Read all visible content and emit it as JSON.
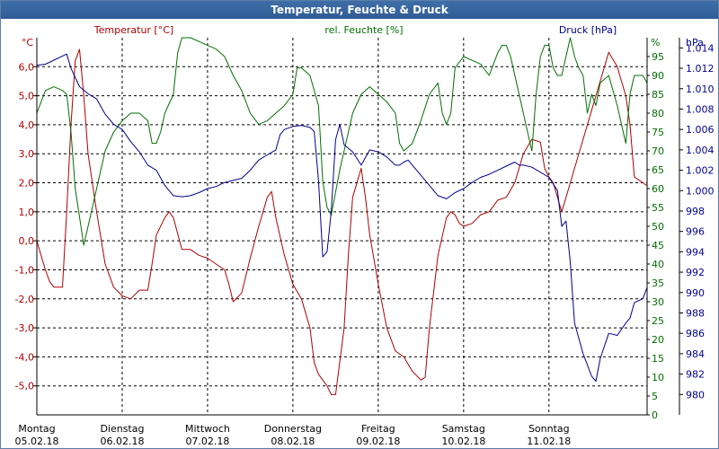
{
  "window": {
    "title": "Temperatur, Feuchte & Druck"
  },
  "colors": {
    "temperature": "#b00000",
    "humidity": "#007000",
    "pressure": "#000090",
    "grid": "#000000",
    "title_bar": "#2f5c95"
  },
  "chart_data": {
    "type": "line",
    "title": "Temperatur, Feuchte & Druck",
    "grid": true,
    "x_range": [
      0,
      7
    ],
    "x_ticks": [
      {
        "day": "Montag",
        "date": "05.02.18"
      },
      {
        "day": "Dienstag",
        "date": "06.02.18"
      },
      {
        "day": "Mittwoch",
        "date": "07.02.18"
      },
      {
        "day": "Donnerstag",
        "date": "08.02.18"
      },
      {
        "day": "Freitag",
        "date": "09.02.18"
      },
      {
        "day": "Samstag",
        "date": "10.02.18"
      },
      {
        "day": "Sonntag",
        "date": "11.02.18"
      }
    ],
    "axes": {
      "temperature": {
        "label": "Temperatur [°C]",
        "unit": "°C",
        "range": [
          -6,
          7
        ],
        "side": "left",
        "ticks": [
          6,
          5,
          4,
          3,
          2,
          1,
          0,
          -1,
          -2,
          -3,
          -4,
          -5
        ],
        "tick_labels": [
          "6,0",
          "5,0",
          "4,0",
          "3,0",
          "2,0",
          "1,0",
          "0,0",
          "-1,0",
          "-2,0",
          "-3,0",
          "-4,0",
          "-5,0"
        ]
      },
      "humidity": {
        "label": "rel. Feuchte [%]",
        "unit": "%",
        "range": [
          0,
          100
        ],
        "side": "right",
        "ticks": [
          95,
          90,
          85,
          80,
          75,
          70,
          65,
          60,
          55,
          50,
          45,
          40,
          35,
          30,
          25,
          20,
          15,
          10,
          5,
          0
        ],
        "tick_labels": [
          "95",
          "90",
          "85",
          "80",
          "75",
          "70",
          "65",
          "60",
          "55",
          "50",
          "45",
          "40",
          "35",
          "30",
          "25",
          "20",
          "15",
          "10",
          "5",
          "0"
        ]
      },
      "pressure": {
        "label": "Druck [hPa]",
        "unit": "hPa",
        "range": [
          978,
          1015
        ],
        "side": "right",
        "ticks": [
          1014,
          1012,
          1010,
          1008,
          1006,
          1004,
          1002,
          1000,
          998,
          996,
          994,
          992,
          990,
          988,
          986,
          984,
          982,
          980
        ],
        "tick_labels": [
          "1.014",
          "1.012",
          "1.010",
          "1.008",
          "1.006",
          "1.004",
          "1.002",
          "1.000",
          "998",
          "996",
          "994",
          "992",
          "990",
          "988",
          "986",
          "984",
          "982",
          "980"
        ]
      }
    },
    "series": [
      {
        "name": "Temperatur [°C]",
        "axis": "temperature",
        "points": [
          [
            0,
            0.0
          ],
          [
            0.05,
            -0.5
          ],
          [
            0.1,
            -1.0
          ],
          [
            0.15,
            -1.4
          ],
          [
            0.2,
            -1.6
          ],
          [
            0.25,
            -1.6
          ],
          [
            0.3,
            -1.6
          ],
          [
            0.35,
            1.0
          ],
          [
            0.4,
            4.0
          ],
          [
            0.45,
            6.2
          ],
          [
            0.5,
            6.6
          ],
          [
            0.55,
            5.0
          ],
          [
            0.6,
            3.0
          ],
          [
            0.7,
            1.0
          ],
          [
            0.8,
            -0.8
          ],
          [
            0.9,
            -1.6
          ],
          [
            1.0,
            -1.9
          ],
          [
            1.1,
            -2.0
          ],
          [
            1.2,
            -1.7
          ],
          [
            1.3,
            -1.7
          ],
          [
            1.35,
            -0.8
          ],
          [
            1.4,
            0.2
          ],
          [
            1.5,
            0.8
          ],
          [
            1.55,
            1.0
          ],
          [
            1.6,
            0.8
          ],
          [
            1.7,
            -0.3
          ],
          [
            1.8,
            -0.3
          ],
          [
            1.9,
            -0.5
          ],
          [
            2.0,
            -0.6
          ],
          [
            2.1,
            -0.8
          ],
          [
            2.2,
            -1.0
          ],
          [
            2.25,
            -1.5
          ],
          [
            2.3,
            -2.1
          ],
          [
            2.4,
            -1.8
          ],
          [
            2.5,
            -0.6
          ],
          [
            2.6,
            0.5
          ],
          [
            2.7,
            1.5
          ],
          [
            2.75,
            1.7
          ],
          [
            2.8,
            0.8
          ],
          [
            2.9,
            -0.5
          ],
          [
            3.0,
            -1.5
          ],
          [
            3.1,
            -2.0
          ],
          [
            3.2,
            -3.0
          ],
          [
            3.25,
            -4.2
          ],
          [
            3.3,
            -4.6
          ],
          [
            3.4,
            -5.0
          ],
          [
            3.45,
            -5.3
          ],
          [
            3.5,
            -5.3
          ],
          [
            3.6,
            -3.0
          ],
          [
            3.65,
            -0.5
          ],
          [
            3.7,
            1.5
          ],
          [
            3.8,
            2.5
          ],
          [
            3.85,
            1.5
          ],
          [
            3.9,
            0.2
          ],
          [
            4.0,
            -1.5
          ],
          [
            4.1,
            -3.0
          ],
          [
            4.2,
            -3.8
          ],
          [
            4.3,
            -4.0
          ],
          [
            4.4,
            -4.5
          ],
          [
            4.5,
            -4.8
          ],
          [
            4.55,
            -4.7
          ],
          [
            4.6,
            -3.0
          ],
          [
            4.7,
            -0.5
          ],
          [
            4.8,
            0.8
          ],
          [
            4.85,
            1.0
          ],
          [
            4.9,
            0.9
          ],
          [
            4.95,
            0.6
          ],
          [
            5.0,
            0.5
          ],
          [
            5.1,
            0.6
          ],
          [
            5.2,
            0.9
          ],
          [
            5.3,
            1.0
          ],
          [
            5.4,
            1.4
          ],
          [
            5.5,
            1.5
          ],
          [
            5.6,
            2.0
          ],
          [
            5.7,
            3.0
          ],
          [
            5.8,
            3.5
          ],
          [
            5.9,
            3.4
          ],
          [
            5.95,
            2.5
          ],
          [
            6.0,
            2.2
          ],
          [
            6.05,
            2.0
          ],
          [
            6.1,
            1.5
          ],
          [
            6.15,
            1.0
          ],
          [
            6.2,
            1.5
          ],
          [
            6.3,
            2.5
          ],
          [
            6.4,
            3.5
          ],
          [
            6.5,
            4.5
          ],
          [
            6.6,
            5.5
          ],
          [
            6.7,
            6.5
          ],
          [
            6.8,
            6.0
          ],
          [
            6.85,
            5.5
          ],
          [
            6.9,
            5.0
          ],
          [
            6.95,
            4.0
          ],
          [
            7.0,
            2.2
          ],
          [
            7.1,
            2.0
          ],
          [
            7.15,
            1.9
          ]
        ]
      },
      {
        "name": "rel. Feuchte [%]",
        "axis": "humidity",
        "points": [
          [
            0,
            80
          ],
          [
            0.1,
            86
          ],
          [
            0.2,
            87
          ],
          [
            0.3,
            86
          ],
          [
            0.35,
            85
          ],
          [
            0.4,
            75
          ],
          [
            0.45,
            60
          ],
          [
            0.55,
            45
          ],
          [
            0.6,
            50
          ],
          [
            0.7,
            60
          ],
          [
            0.8,
            70
          ],
          [
            0.9,
            75
          ],
          [
            1.0,
            78
          ],
          [
            1.1,
            80
          ],
          [
            1.2,
            80
          ],
          [
            1.3,
            78
          ],
          [
            1.35,
            72
          ],
          [
            1.4,
            72
          ],
          [
            1.45,
            75
          ],
          [
            1.5,
            80
          ],
          [
            1.6,
            85
          ],
          [
            1.65,
            96
          ],
          [
            1.7,
            100
          ],
          [
            1.8,
            100
          ],
          [
            1.9,
            99
          ],
          [
            2.0,
            98
          ],
          [
            2.1,
            97
          ],
          [
            2.2,
            95
          ],
          [
            2.3,
            90
          ],
          [
            2.4,
            86
          ],
          [
            2.5,
            80
          ],
          [
            2.6,
            77
          ],
          [
            2.7,
            78
          ],
          [
            2.8,
            80
          ],
          [
            2.9,
            82
          ],
          [
            3.0,
            85
          ],
          [
            3.05,
            92
          ],
          [
            3.1,
            92
          ],
          [
            3.2,
            90
          ],
          [
            3.3,
            82
          ],
          [
            3.35,
            62
          ],
          [
            3.4,
            55
          ],
          [
            3.45,
            53
          ],
          [
            3.55,
            65
          ],
          [
            3.6,
            70
          ],
          [
            3.7,
            80
          ],
          [
            3.8,
            85
          ],
          [
            3.9,
            87
          ],
          [
            4.0,
            85
          ],
          [
            4.1,
            83
          ],
          [
            4.2,
            80
          ],
          [
            4.25,
            72
          ],
          [
            4.3,
            70
          ],
          [
            4.4,
            72
          ],
          [
            4.5,
            78
          ],
          [
            4.6,
            85
          ],
          [
            4.7,
            88
          ],
          [
            4.75,
            80
          ],
          [
            4.8,
            77
          ],
          [
            4.85,
            80
          ],
          [
            4.9,
            92
          ],
          [
            5.0,
            95
          ],
          [
            5.1,
            94
          ],
          [
            5.2,
            93
          ],
          [
            5.3,
            90
          ],
          [
            5.4,
            96
          ],
          [
            5.45,
            98
          ],
          [
            5.5,
            98
          ],
          [
            5.55,
            95
          ],
          [
            5.65,
            85
          ],
          [
            5.7,
            80
          ],
          [
            5.75,
            75
          ],
          [
            5.8,
            70
          ],
          [
            5.85,
            85
          ],
          [
            5.9,
            95
          ],
          [
            5.95,
            98
          ],
          [
            6.0,
            98
          ],
          [
            6.05,
            92
          ],
          [
            6.1,
            90
          ],
          [
            6.15,
            90
          ],
          [
            6.2,
            95
          ],
          [
            6.25,
            100
          ],
          [
            6.3,
            95
          ],
          [
            6.35,
            92
          ],
          [
            6.4,
            90
          ],
          [
            6.45,
            80
          ],
          [
            6.5,
            85
          ],
          [
            6.55,
            82
          ],
          [
            6.6,
            88
          ],
          [
            6.7,
            90
          ],
          [
            6.8,
            82
          ],
          [
            6.9,
            72
          ],
          [
            6.95,
            85
          ],
          [
            7.0,
            90
          ],
          [
            7.1,
            90
          ],
          [
            7.15,
            88
          ]
        ]
      },
      {
        "name": "Druck [hPa]",
        "axis": "pressure",
        "points": [
          [
            0,
            1012.3
          ],
          [
            0.1,
            1012.4
          ],
          [
            0.2,
            1012.8
          ],
          [
            0.3,
            1013.2
          ],
          [
            0.35,
            1013.4
          ],
          [
            0.4,
            1012.0
          ],
          [
            0.5,
            1010.2
          ],
          [
            0.6,
            1009.5
          ],
          [
            0.7,
            1009.0
          ],
          [
            0.8,
            1007.5
          ],
          [
            0.9,
            1006.5
          ],
          [
            1.0,
            1006.0
          ],
          [
            1.1,
            1004.8
          ],
          [
            1.2,
            1003.8
          ],
          [
            1.3,
            1002.5
          ],
          [
            1.4,
            1002.0
          ],
          [
            1.5,
            1000.5
          ],
          [
            1.6,
            999.5
          ],
          [
            1.7,
            999.4
          ],
          [
            1.8,
            999.5
          ],
          [
            1.9,
            999.8
          ],
          [
            2.0,
            1000.2
          ],
          [
            2.1,
            1000.4
          ],
          [
            2.2,
            1000.8
          ],
          [
            2.3,
            1001.0
          ],
          [
            2.4,
            1001.2
          ],
          [
            2.5,
            1002.0
          ],
          [
            2.6,
            1003.0
          ],
          [
            2.7,
            1003.5
          ],
          [
            2.8,
            1004.0
          ],
          [
            2.85,
            1005.5
          ],
          [
            2.9,
            1006.0
          ],
          [
            3.0,
            1006.3
          ],
          [
            3.1,
            1006.4
          ],
          [
            3.2,
            1006.2
          ],
          [
            3.25,
            1005.8
          ],
          [
            3.3,
            1001.0
          ],
          [
            3.35,
            993.5
          ],
          [
            3.4,
            994.0
          ],
          [
            3.45,
            998.0
          ],
          [
            3.5,
            1005.0
          ],
          [
            3.55,
            1006.5
          ],
          [
            3.6,
            1004.5
          ],
          [
            3.7,
            1003.8
          ],
          [
            3.8,
            1002.5
          ],
          [
            3.9,
            1004.0
          ],
          [
            4.0,
            1003.8
          ],
          [
            4.1,
            1003.3
          ],
          [
            4.2,
            1002.5
          ],
          [
            4.25,
            1002.5
          ],
          [
            4.3,
            1002.8
          ],
          [
            4.35,
            1003.0
          ],
          [
            4.4,
            1002.5
          ],
          [
            4.5,
            1001.5
          ],
          [
            4.6,
            1000.5
          ],
          [
            4.7,
            999.5
          ],
          [
            4.8,
            999.2
          ],
          [
            4.9,
            999.8
          ],
          [
            5.0,
            1000.2
          ],
          [
            5.1,
            1000.8
          ],
          [
            5.2,
            1001.3
          ],
          [
            5.3,
            1001.6
          ],
          [
            5.4,
            1002.0
          ],
          [
            5.5,
            1002.4
          ],
          [
            5.6,
            1002.8
          ],
          [
            5.65,
            1002.5
          ],
          [
            5.7,
            1002.5
          ],
          [
            5.8,
            1002.3
          ],
          [
            5.9,
            1001.8
          ],
          [
            6.0,
            1001.3
          ],
          [
            6.1,
            1000.0
          ],
          [
            6.15,
            996.5
          ],
          [
            6.2,
            997.0
          ],
          [
            6.25,
            993.0
          ],
          [
            6.3,
            987.0
          ],
          [
            6.4,
            984.0
          ],
          [
            6.5,
            981.8
          ],
          [
            6.55,
            981.3
          ],
          [
            6.6,
            983.5
          ],
          [
            6.7,
            986.0
          ],
          [
            6.8,
            985.8
          ],
          [
            6.9,
            987.0
          ],
          [
            6.95,
            987.5
          ],
          [
            7.0,
            989.0
          ],
          [
            7.1,
            989.4
          ],
          [
            7.15,
            990.5
          ]
        ]
      }
    ]
  }
}
